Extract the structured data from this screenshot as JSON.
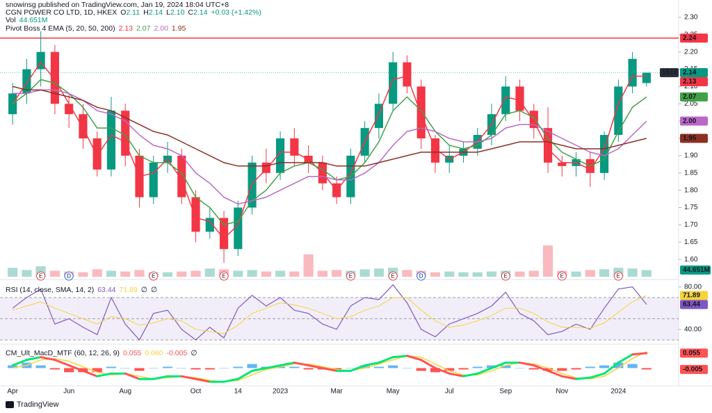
{
  "header": {
    "publisher": "snowinsg published on TradingView.com, Jan 19, 2024 18:04 UTC+8",
    "brand": "TradingView"
  },
  "chart_data": [
    {
      "type": "candlestick",
      "title": "CGN POWER CO LTD, 1D, HKEX",
      "ohlc_legend": [
        "O",
        "2.11",
        "H",
        "2.14",
        "L",
        "2.10",
        "C",
        "2.14",
        "+0.03 (+1.42%)"
      ],
      "categories": [
        "Apr",
        null,
        null,
        null,
        "Jun",
        null,
        null,
        null,
        "Aug",
        null,
        null,
        null,
        null,
        "Oct",
        null,
        null,
        "14",
        null,
        null,
        "2023",
        null,
        null,
        null,
        "Mar",
        null,
        null,
        null,
        "May",
        null,
        null,
        null,
        "Jul",
        null,
        null,
        null,
        "Sep",
        null,
        null,
        null,
        "Nov",
        null,
        null,
        null,
        "2024",
        null,
        null
      ],
      "events": [
        null,
        null,
        "E",
        null,
        "D",
        null,
        null,
        null,
        null,
        null,
        "E",
        null,
        null,
        null,
        null,
        "E",
        null,
        null,
        null,
        null,
        null,
        null,
        null,
        null,
        "E",
        null,
        null,
        "E",
        null,
        "D",
        null,
        null,
        null,
        null,
        null,
        "E",
        null,
        null,
        null,
        "E",
        null,
        null,
        null,
        "E",
        null,
        null
      ],
      "open": [
        2.02,
        2.08,
        2.15,
        2.2,
        2.05,
        2.02,
        1.95,
        1.86,
        2.03,
        1.9,
        1.78,
        1.88,
        1.9,
        1.78,
        1.68,
        1.72,
        1.63,
        1.75,
        1.88,
        1.85,
        1.95,
        1.9,
        1.88,
        1.82,
        1.78,
        1.9,
        1.98,
        2.05,
        2.17,
        2.1,
        1.95,
        1.88,
        1.9,
        1.92,
        1.96,
        2.02,
        2.1,
        2.03,
        1.98,
        1.88,
        1.87,
        1.89,
        1.85,
        1.96,
        2.1,
        2.11
      ],
      "high": [
        2.11,
        2.18,
        2.26,
        2.22,
        2.08,
        2.05,
        1.97,
        2.07,
        2.05,
        1.92,
        1.9,
        1.94,
        1.92,
        1.8,
        1.75,
        1.74,
        1.77,
        1.9,
        1.92,
        1.97,
        1.98,
        1.93,
        1.9,
        1.84,
        1.92,
        2.0,
        2.08,
        2.2,
        2.19,
        2.12,
        1.96,
        1.93,
        1.94,
        1.98,
        2.05,
        2.13,
        2.12,
        2.05,
        2.04,
        1.9,
        1.91,
        1.91,
        1.97,
        2.12,
        2.2,
        2.14
      ],
      "low": [
        1.99,
        2.05,
        2.1,
        2.02,
        1.98,
        1.92,
        1.84,
        1.84,
        1.87,
        1.75,
        1.76,
        1.85,
        1.76,
        1.65,
        1.66,
        1.59,
        1.61,
        1.73,
        1.82,
        1.83,
        1.87,
        1.85,
        1.8,
        1.76,
        1.76,
        1.88,
        1.95,
        2.03,
        2.08,
        1.92,
        1.85,
        1.85,
        1.88,
        1.9,
        1.93,
        2.0,
        2.0,
        1.95,
        1.85,
        1.84,
        1.84,
        1.81,
        1.83,
        1.94,
        2.08,
        2.1
      ],
      "close": [
        2.08,
        2.15,
        2.2,
        2.05,
        2.02,
        1.95,
        1.86,
        2.03,
        1.9,
        1.78,
        1.88,
        1.9,
        1.78,
        1.68,
        1.72,
        1.63,
        1.75,
        1.88,
        1.85,
        1.95,
        1.9,
        1.88,
        1.82,
        1.78,
        1.9,
        1.98,
        2.05,
        2.17,
        2.1,
        1.95,
        1.88,
        1.9,
        1.92,
        1.96,
        2.02,
        2.1,
        2.03,
        1.98,
        1.88,
        1.87,
        1.89,
        1.85,
        1.96,
        2.1,
        2.18,
        2.14
      ],
      "up_color": "#089981",
      "down_color": "#f23645",
      "ylim": [
        1.55,
        2.32
      ],
      "yticks": [
        {
          "value": 1.6,
          "label": "1.60"
        },
        1.65,
        {
          "value": 1.7,
          "label": "1.70"
        },
        1.75,
        {
          "value": 1.8,
          "label": "1.80"
        },
        1.85,
        {
          "value": 1.9,
          "label": "1.90"
        },
        1.95,
        {
          "value": 2,
          "label": "2.00"
        },
        2.05,
        {
          "value": 2.1,
          "label": "2.10"
        },
        2.15,
        {
          "value": 2.2,
          "label": "2.20"
        },
        2.25,
        {
          "value": 2.3,
          "label": "2.30"
        }
      ],
      "volume": {
        "name": "Vol",
        "values": [
          60,
          45,
          70,
          40,
          35,
          30,
          50,
          40,
          35,
          45,
          30,
          30,
          35,
          40,
          55,
          50,
          40,
          45,
          35,
          40,
          35,
          150,
          40,
          45,
          40,
          50,
          55,
          60,
          45,
          40,
          30,
          35,
          30,
          30,
          35,
          40,
          35,
          40,
          210,
          40,
          35,
          45,
          50,
          60,
          55,
          44.651
        ],
        "label": "44.651M"
      },
      "indicator": "Pivot Boss 4 EMA (5, 20, 50, 200)",
      "series": [
        {
          "color": "#f23645",
          "values": [
            2.05,
            2.11,
            2.17,
            2.12,
            2.05,
            1.98,
            1.9,
            1.96,
            1.94,
            1.84,
            1.85,
            1.89,
            1.83,
            1.72,
            1.71,
            1.66,
            1.7,
            1.82,
            1.86,
            1.91,
            1.91,
            1.89,
            1.85,
            1.8,
            1.85,
            1.94,
            2.02,
            2.12,
            2.13,
            2.02,
            1.92,
            1.89,
            1.91,
            1.94,
            1.99,
            2.07,
            2.06,
            2.0,
            1.92,
            1.88,
            1.88,
            1.86,
            1.92,
            2.05,
            2.13,
            2.13
          ]
        },
        {
          "color": "#43a047",
          "values": [
            2.05,
            2.08,
            2.12,
            2.11,
            2.08,
            2.04,
            1.98,
            1.98,
            1.96,
            1.9,
            1.88,
            1.88,
            1.85,
            1.78,
            1.75,
            1.7,
            1.71,
            1.77,
            1.8,
            1.85,
            1.87,
            1.88,
            1.86,
            1.83,
            1.84,
            1.88,
            1.94,
            2.03,
            2.07,
            2.03,
            1.97,
            1.93,
            1.92,
            1.93,
            1.96,
            2.02,
            2.03,
            2.01,
            1.95,
            1.91,
            1.89,
            1.87,
            1.89,
            1.97,
            2.04,
            2.07
          ]
        },
        {
          "color": "#ba68c8",
          "values": [
            2.08,
            2.08,
            2.09,
            2.09,
            2.08,
            2.06,
            2.03,
            2.02,
            2.0,
            1.96,
            1.93,
            1.92,
            1.9,
            1.85,
            1.82,
            1.78,
            1.76,
            1.77,
            1.78,
            1.8,
            1.82,
            1.84,
            1.84,
            1.83,
            1.83,
            1.85,
            1.88,
            1.93,
            1.97,
            1.98,
            1.97,
            1.95,
            1.94,
            1.94,
            1.95,
            1.98,
            1.99,
            1.99,
            1.97,
            1.95,
            1.93,
            1.91,
            1.9,
            1.92,
            1.96,
            2.0
          ]
        },
        {
          "color": "#8d2f23",
          "values": [
            2.1,
            2.09,
            2.09,
            2.08,
            2.07,
            2.06,
            2.04,
            2.03,
            2.01,
            1.99,
            1.97,
            1.96,
            1.94,
            1.92,
            1.9,
            1.88,
            1.87,
            1.87,
            1.87,
            1.88,
            1.88,
            1.88,
            1.88,
            1.87,
            1.87,
            1.87,
            1.88,
            1.89,
            1.9,
            1.91,
            1.91,
            1.91,
            1.91,
            1.91,
            1.92,
            1.93,
            1.94,
            1.94,
            1.94,
            1.93,
            1.92,
            1.92,
            1.92,
            1.93,
            1.94,
            1.95
          ]
        }
      ],
      "legend_values": [
        "2.13",
        "2.07",
        "2.00",
        "1.95"
      ],
      "hline": {
        "value": 2.24,
        "label": "2.24",
        "color": "#f23645"
      },
      "price_line": {
        "value": 2.14,
        "label": "2.14",
        "tag": "1816"
      }
    },
    {
      "type": "line",
      "title": "RSI (14, close, SMA, 14, 2)",
      "legend_values": [
        "63.44",
        "71.89",
        "∅",
        "∅"
      ],
      "series": [
        {
          "color": "#7e57c2",
          "values": [
            60,
            70,
            78,
            45,
            50,
            42,
            35,
            70,
            45,
            30,
            55,
            58,
            40,
            30,
            42,
            32,
            60,
            72,
            62,
            70,
            58,
            55,
            45,
            40,
            62,
            70,
            68,
            82,
            65,
            40,
            33,
            45,
            50,
            55,
            62,
            75,
            55,
            48,
            35,
            38,
            45,
            40,
            60,
            78,
            80,
            63.44
          ]
        },
        {
          "color": "#f5d33b",
          "values": [
            58,
            62,
            66,
            60,
            55,
            50,
            45,
            52,
            50,
            44,
            46,
            50,
            48,
            40,
            38,
            36,
            44,
            55,
            60,
            65,
            63,
            60,
            55,
            50,
            52,
            58,
            62,
            70,
            70,
            58,
            48,
            42,
            44,
            48,
            53,
            60,
            60,
            55,
            47,
            42,
            42,
            41,
            46,
            56,
            66,
            71.89
          ]
        }
      ],
      "ylim": [
        28,
        85
      ],
      "yticks": [
        {
          "value": 40,
          "label": "40.00"
        },
        {
          "value": 80,
          "label": "80.00"
        }
      ],
      "bands": [
        30,
        50,
        70
      ]
    },
    {
      "type": "macd",
      "title": "CM_Ult_MacD_MTF (60, 12, 26, 9)",
      "legend_values": [
        "0.055",
        "0.060",
        "-0.005",
        "∅"
      ],
      "macd": [
        0.01,
        0.03,
        0.04,
        0.03,
        0.01,
        -0.01,
        -0.03,
        -0.02,
        -0.02,
        -0.04,
        -0.04,
        -0.03,
        -0.03,
        -0.04,
        -0.05,
        -0.05,
        -0.04,
        -0.01,
        0.0,
        0.01,
        0.02,
        0.01,
        0.0,
        -0.01,
        -0.01,
        0.01,
        0.02,
        0.04,
        0.045,
        0.03,
        0.0,
        -0.02,
        -0.03,
        -0.02,
        0.0,
        0.02,
        0.02,
        0.01,
        -0.01,
        -0.03,
        -0.04,
        -0.035,
        -0.02,
        0.02,
        0.05,
        0.055
      ],
      "signal": [
        0.0,
        0.01,
        0.03,
        0.035,
        0.025,
        0.005,
        -0.015,
        -0.025,
        -0.02,
        -0.03,
        -0.04,
        -0.035,
        -0.03,
        -0.035,
        -0.045,
        -0.05,
        -0.045,
        -0.025,
        -0.005,
        0.005,
        0.015,
        0.015,
        0.005,
        -0.005,
        -0.01,
        0.0,
        0.015,
        0.03,
        0.045,
        0.04,
        0.015,
        -0.01,
        -0.025,
        -0.025,
        -0.01,
        0.01,
        0.02,
        0.015,
        0.0,
        -0.02,
        -0.035,
        -0.04,
        -0.03,
        0.0,
        0.035,
        0.06
      ],
      "histogram": [
        0.01,
        0.02,
        0.01,
        -0.005,
        -0.015,
        -0.015,
        -0.015,
        0.005,
        0,
        -0.01,
        0,
        0.005,
        0,
        -0.005,
        -0.005,
        0,
        0.005,
        0.015,
        0.005,
        0.005,
        0.005,
        -0.005,
        -0.005,
        -0.005,
        0,
        0.01,
        0.005,
        0.01,
        0,
        -0.01,
        -0.015,
        -0.01,
        -0.005,
        0.005,
        0.01,
        0.01,
        0,
        -0.005,
        -0.01,
        -0.01,
        -0.005,
        0.005,
        0.01,
        0.02,
        0.015,
        -0.005
      ],
      "ylim": [
        -0.06,
        0.08
      ],
      "up_color": "#00e676",
      "down_color": "#ff5252",
      "signal_color": "#f5d33b",
      "hist_up_color": "#64b5f6",
      "hist_down_color": "#ff5252"
    }
  ]
}
